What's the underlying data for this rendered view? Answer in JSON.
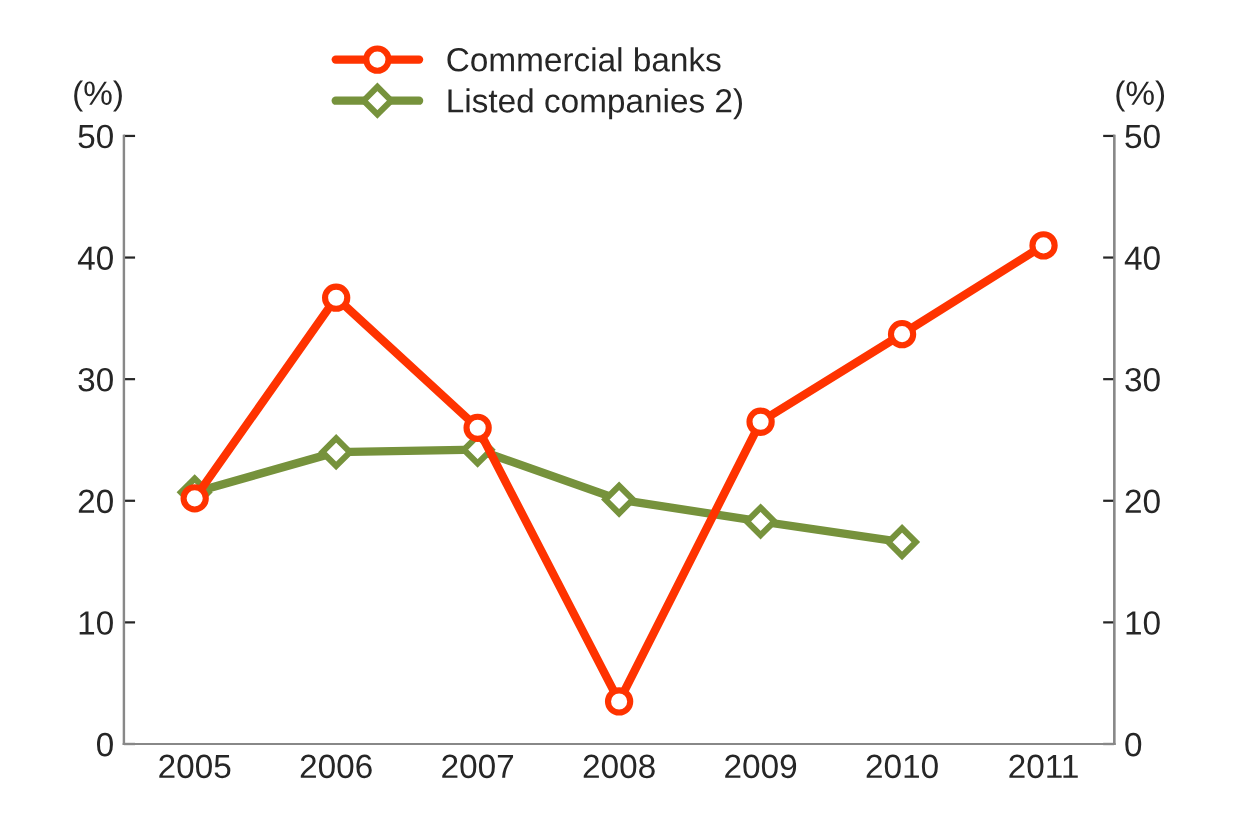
{
  "chart_data": {
    "type": "line",
    "categories": [
      "2005",
      "2006",
      "2007",
      "2008",
      "2009",
      "2010",
      "2011"
    ],
    "ylabel": "(%)",
    "y2label": "(%)",
    "ylim": [
      0,
      50
    ],
    "yticks": [
      0,
      10,
      20,
      30,
      40,
      50
    ],
    "y2lim": [
      0,
      50
    ],
    "y2ticks": [
      0,
      10,
      20,
      30,
      40,
      50
    ],
    "grid": false,
    "legend": "top",
    "line_style": "solid",
    "series": [
      {
        "name": "Commercial banks",
        "color": "#ff3300",
        "marker": "circle",
        "values": [
          20.2,
          36.7,
          26.0,
          3.5,
          26.5,
          33.7,
          41.0
        ]
      },
      {
        "name": "Listed companies 2)",
        "color": "#76923c",
        "marker": "diamond",
        "values": [
          20.7,
          24.0,
          24.2,
          20.1,
          18.3,
          16.6,
          null
        ]
      }
    ]
  }
}
